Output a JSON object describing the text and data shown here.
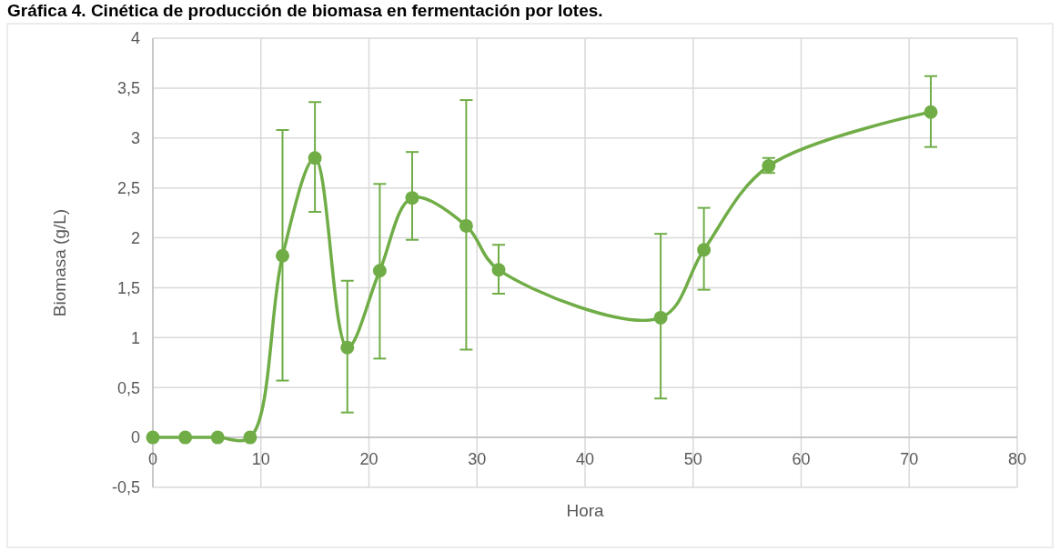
{
  "chart_data": {
    "type": "line",
    "title": "Gráfica 4. Cinética de producción de biomasa en fermentación por lotes.",
    "xlabel": "Hora",
    "ylabel": "Biomasa (g/L)",
    "x": [
      0,
      3,
      6,
      9,
      12,
      15,
      18,
      21,
      24,
      29,
      32,
      47,
      51,
      57,
      72
    ],
    "series": [
      {
        "color": "#70ad47",
        "values": [
          0,
          0,
          0,
          0,
          1.82,
          2.8,
          0.9,
          1.67,
          2.4,
          2.12,
          1.68,
          1.2,
          1.88,
          2.72,
          3.26
        ],
        "errors": [
          null,
          null,
          null,
          null,
          [
            0.57,
            3.08
          ],
          [
            2.26,
            3.36
          ],
          [
            0.25,
            1.57
          ],
          [
            0.79,
            2.54
          ],
          [
            1.98,
            2.86
          ],
          [
            0.88,
            3.38
          ],
          [
            1.44,
            1.93
          ],
          [
            0.39,
            2.04
          ],
          [
            1.48,
            2.3
          ],
          [
            2.65,
            2.8
          ],
          [
            2.91,
            3.62
          ]
        ]
      }
    ],
    "xlim": [
      0,
      80
    ],
    "xticks": [
      0,
      10,
      20,
      30,
      40,
      50,
      60,
      70,
      80
    ],
    "ylim": [
      -0.5,
      4
    ],
    "yticks": [
      {
        "value": -0.5,
        "label": "-0,5"
      },
      0,
      {
        "value": 0.5,
        "label": "0,5"
      },
      1,
      {
        "value": 1.5,
        "label": "1,5"
      },
      2,
      {
        "value": 2.5,
        "label": "2,5"
      },
      3,
      {
        "value": 3.5,
        "label": "3,5"
      },
      4
    ],
    "grid": true,
    "marker": "circle",
    "line_style": "solid"
  }
}
